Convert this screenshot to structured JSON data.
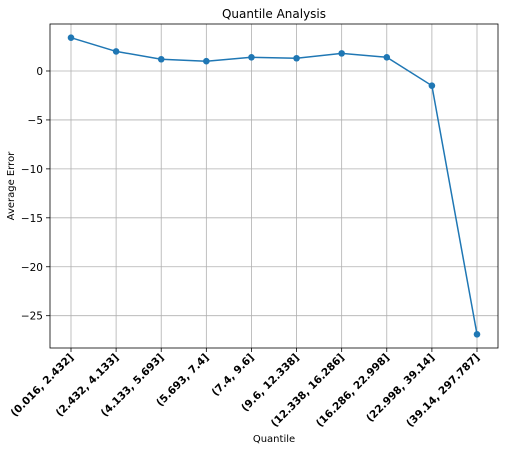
{
  "chart_data": {
    "type": "line",
    "title": "Quantile Analysis",
    "xlabel": "Quantile",
    "ylabel": "Average Error",
    "categories": [
      "(0.016, 2.432]",
      "(2.432, 4.133]",
      "(4.133, 5.693]",
      "(5.693, 7.4]",
      "(7.4, 9.6]",
      "(9.6, 12.338]",
      "(12.338, 16.286]",
      "(16.286, 22.998]",
      "(22.998, 39.14]",
      "(39.14, 297.787]"
    ],
    "series": [
      {
        "values": [
          3.4,
          2.0,
          1.2,
          1.0,
          1.4,
          1.3,
          1.8,
          1.4,
          -1.5,
          -26.9
        ]
      }
    ],
    "yticks": [
      0,
      -5,
      -10,
      -15,
      -20,
      -25
    ],
    "ytick_labels": [
      "0",
      "−5",
      "−10",
      "−15",
      "−20",
      "−25"
    ],
    "ylim": [
      -28.3,
      4.8
    ],
    "grid": true,
    "line_color": "#1f77b4",
    "marker": "circle"
  }
}
